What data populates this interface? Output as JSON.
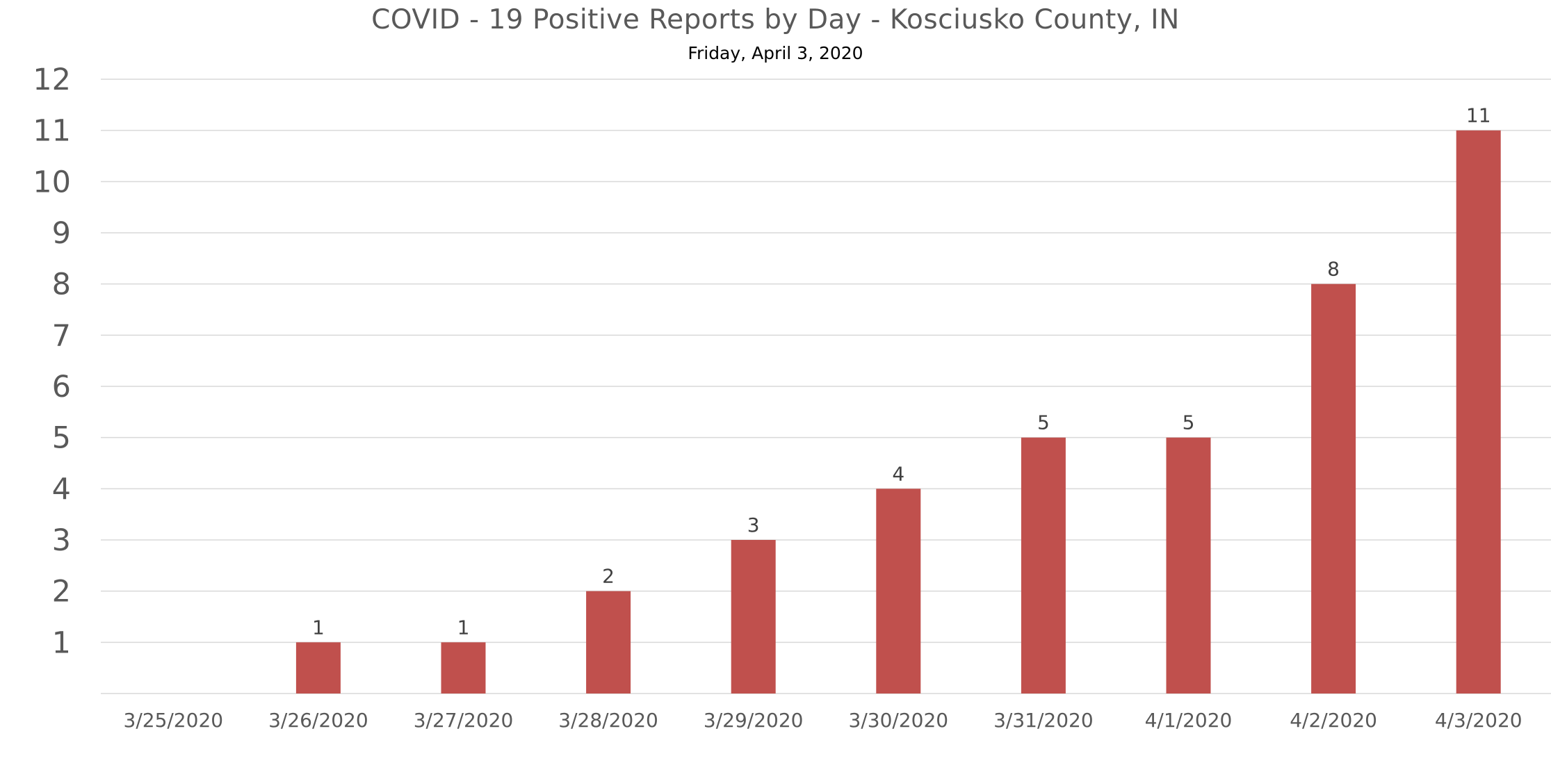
{
  "chart_data": {
    "type": "bar",
    "title": "COVID - 19 Positive Reports by Day - Kosciusko County, IN",
    "subtitle": "Friday, April 3, 2020",
    "xlabel": "",
    "ylabel": "",
    "categories": [
      "3/25/2020",
      "3/26/2020",
      "3/27/2020",
      "3/28/2020",
      "3/29/2020",
      "3/30/2020",
      "3/31/2020",
      "4/1/2020",
      "4/2/2020",
      "4/3/2020"
    ],
    "values": [
      0,
      1,
      1,
      2,
      3,
      4,
      5,
      5,
      8,
      11
    ],
    "data_labels": [
      "",
      "1",
      "1",
      "2",
      "3",
      "4",
      "5",
      "5",
      "8",
      "11"
    ],
    "y_ticks": [
      "1",
      "2",
      "3",
      "4",
      "5",
      "6",
      "7",
      "8",
      "9",
      "10",
      "11",
      "12"
    ],
    "ylim": [
      0,
      12
    ],
    "grid": true,
    "legend": "none",
    "colors": {
      "bar": "#c0504d",
      "grid": "#d9d9d9",
      "axis_text": "#595959",
      "title": "#595959",
      "subtitle": "#000000",
      "data_label": "#404040"
    }
  }
}
